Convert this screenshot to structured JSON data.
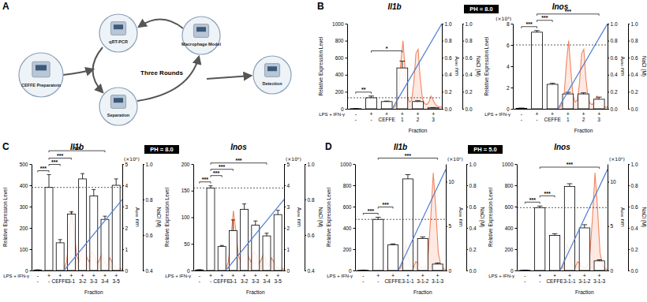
{
  "panels": [
    {
      "label": "A"
    },
    {
      "label": "B",
      "ph_label": "PH = 8.0"
    },
    {
      "label": "C",
      "ph_label": "PH = 8.0"
    },
    {
      "label": "D",
      "ph_label": "PH = 5.0"
    }
  ],
  "diagram": {
    "center_label": "Three Rounds",
    "nodes": [
      {
        "label": "CEFFE Preparatoin"
      },
      {
        "label": "qRT-PCR"
      },
      {
        "label": "Macrophage Model"
      },
      {
        "label": "Separation"
      },
      {
        "label": "Detection"
      }
    ]
  },
  "chart_data": [
    {
      "type": "bar",
      "title": "Il1b",
      "y_label": "Relative Expression Level",
      "y2_label": "A₂₈₀ nm",
      "y3_label": "NaCl (M)",
      "row_label": "LPS + IFN-γ",
      "row_values": [
        "-",
        "+",
        "+",
        "+",
        "+",
        "+"
      ],
      "categories": [
        "-",
        "-",
        "CEFFE",
        "1",
        "2",
        "3"
      ],
      "x_label": "Fraction",
      "values": [
        2,
        130,
        85,
        480,
        85,
        12
      ],
      "errors": [
        1,
        20,
        6,
        80,
        10,
        3
      ],
      "color": "#ffffff",
      "reference_line": 130,
      "ylim": [
        0,
        1000
      ],
      "yticks": [
        0,
        200,
        400,
        600,
        800,
        1000
      ],
      "y2lim": [
        0,
        1
      ],
      "y2ticks": [
        {
          "value": 0,
          "label": "0.0"
        },
        0.2,
        0.4,
        0.6,
        0.8,
        {
          "value": 1,
          "label": "1.0"
        }
      ],
      "y3lim": [
        0,
        1
      ],
      "y3ticks": [
        {
          "value": 0,
          "label": "0.0"
        },
        0.2,
        0.4,
        0.6,
        0.8,
        {
          "value": 1,
          "label": "1.0"
        }
      ],
      "chromatogram": {
        "color": "#f4845f",
        "axis": "y2",
        "values": [
          0,
          0.02,
          0.05,
          0.2,
          0.55,
          0.8,
          0.45,
          0.15,
          0.08,
          0.1,
          0.3,
          0.65,
          0.7,
          0.35,
          0.12,
          0.06,
          0.05,
          0.08,
          0.15,
          0.1,
          0.05,
          0.03,
          0.02,
          0.02
        ]
      },
      "gradient": {
        "color": "#4f7fd6",
        "axis": "y3",
        "values": [
          0,
          1
        ]
      },
      "annotations": [
        {
          "from": 0,
          "to": 1,
          "label": "**"
        },
        {
          "from": 1,
          "to": 3,
          "label": "*"
        }
      ]
    },
    {
      "type": "bar",
      "title": "Inos",
      "y_label": "Relative Expression Level",
      "y_unit_label": "(×10³)",
      "y2_label": "A₂₈₀ nm",
      "y3_label": "NaCl (M)",
      "row_label": "LPS + IFN-γ",
      "row_values": [
        "-",
        "+",
        "+",
        "+",
        "+",
        "+"
      ],
      "categories": [
        "-",
        "-",
        "CEFFE",
        "1",
        "2",
        "3"
      ],
      "x_label": "Fraction",
      "values": [
        0.05,
        7.2,
        2.3,
        1.4,
        1.4,
        0.9
      ],
      "errors": [
        0.02,
        0.15,
        0.1,
        0.15,
        0.1,
        0.2
      ],
      "color": "#ffffff",
      "reference_line": 6,
      "ylim": [
        0,
        8
      ],
      "yticks": [
        0,
        2,
        4,
        6,
        8
      ],
      "y2lim": [
        0,
        1
      ],
      "y2ticks": [
        {
          "value": 0,
          "label": "0.0"
        },
        0.2,
        0.4,
        0.6,
        0.8,
        {
          "value": 1,
          "label": "1.0"
        }
      ],
      "y3lim": [
        0,
        1
      ],
      "y3ticks": [
        {
          "value": 0,
          "label": "0.0"
        },
        0.2,
        0.4,
        0.6,
        0.8,
        {
          "value": 1,
          "label": "1.0"
        }
      ],
      "chromatogram": {
        "color": "#f4845f",
        "axis": "y2",
        "values": [
          0,
          0.02,
          0.05,
          0.2,
          0.55,
          0.8,
          0.45,
          0.15,
          0.08,
          0.1,
          0.3,
          0.65,
          0.7,
          0.35,
          0.12,
          0.06,
          0.05,
          0.08,
          0.15,
          0.1,
          0.05,
          0.03,
          0.02,
          0.02
        ]
      },
      "gradient": {
        "color": "#4f7fd6",
        "axis": "y3",
        "values": [
          0,
          1
        ]
      },
      "annotations": [
        {
          "from": 0,
          "to": 1,
          "label": "***"
        },
        {
          "from": 1,
          "to": 2,
          "label": "***"
        },
        {
          "from": 1,
          "to": 5,
          "label": "***"
        }
      ]
    },
    {
      "type": "bar",
      "title": "Il1b",
      "y_label": "Relative Expression Level",
      "y2_label": "A₂₈₀ nm",
      "y2_unit_label": "(×10⁶)",
      "y3_label": "NaCl (M)",
      "row_label": "LPS + IFN-γ",
      "row_values": [
        "-",
        "+",
        "+",
        "+",
        "+",
        "+",
        "+",
        "+"
      ],
      "categories": [
        "-",
        "-",
        "CEFFE",
        "3-1",
        "3-2",
        "3-3",
        "3-4",
        "3-5"
      ],
      "x_label": "Fraction",
      "values": [
        2,
        390,
        130,
        265,
        430,
        350,
        240,
        400
      ],
      "errors": [
        1,
        60,
        15,
        10,
        25,
        30,
        15,
        30
      ],
      "color": "#ffffff",
      "reference_line": 390,
      "ylim": [
        0,
        500
      ],
      "yticks": [
        0,
        100,
        200,
        300,
        400,
        500
      ],
      "y2lim": [
        0,
        5
      ],
      "y2ticks": [
        0,
        1,
        2,
        3,
        4,
        5
      ],
      "y3lim": [
        0.4,
        1
      ],
      "y3ticks": [
        0.4,
        0.6,
        0.8,
        {
          "value": 1,
          "label": "1.0"
        }
      ],
      "chromatogram": {
        "color": "#f4845f",
        "axis": "y2",
        "values": [
          0.1,
          0.4,
          1.5,
          2.8,
          1.8,
          0.7,
          0.4,
          0.9,
          1.2,
          0.6,
          0.4,
          0.9,
          0.7,
          0.3,
          0.5,
          0.8,
          0.4,
          0.2,
          0.6,
          0.4,
          0.2,
          0.1,
          0.1,
          0.05
        ]
      },
      "gradient": {
        "color": "#4f7fd6",
        "axis": "y3",
        "values": [
          0.4,
          0.8
        ]
      },
      "annotations": [
        {
          "from": 0,
          "to": 1,
          "label": "***"
        },
        {
          "from": 1,
          "to": 2,
          "label": "***"
        },
        {
          "from": 1,
          "to": 3,
          "label": "***"
        },
        {
          "from": 1,
          "to": 6,
          "label": "***"
        }
      ]
    },
    {
      "type": "bar",
      "title": "Inos",
      "y_label": "Relative Expression Level",
      "y2_label": "A₂₈₀ nm",
      "y2_unit_label": "(×10⁶)",
      "y3_label": "NaCl (M)",
      "row_label": "LPS + IFN-γ",
      "row_values": [
        "-",
        "+",
        "+",
        "+",
        "+",
        "+",
        "+",
        "+"
      ],
      "categories": [
        "-",
        "-",
        "CEFFE",
        "3-1",
        "3-2",
        "3-3",
        "3-4",
        "3-5"
      ],
      "x_label": "Fraction",
      "values": [
        1,
        155,
        45,
        75,
        115,
        85,
        65,
        105
      ],
      "errors": [
        0.5,
        4,
        2,
        20,
        10,
        8,
        5,
        8
      ],
      "color": "#ffffff",
      "reference_line": 155,
      "ylim": [
        0,
        200
      ],
      "yticks": [
        0,
        50,
        100,
        150,
        200
      ],
      "y2lim": [
        0,
        5
      ],
      "y2ticks": [
        0,
        1,
        2,
        3,
        4,
        5
      ],
      "y3lim": [
        0.4,
        1
      ],
      "y3ticks": [
        0.4,
        0.6,
        0.8,
        {
          "value": 1,
          "label": "1.0"
        }
      ],
      "chromatogram": {
        "color": "#f4845f",
        "axis": "y2",
        "values": [
          0.1,
          0.4,
          1.5,
          2.8,
          1.8,
          0.7,
          0.4,
          0.9,
          1.2,
          0.6,
          0.4,
          0.9,
          0.7,
          0.3,
          0.5,
          0.8,
          0.4,
          0.2,
          0.6,
          0.4,
          0.2,
          0.1,
          0.1,
          0.05
        ]
      },
      "gradient": {
        "color": "#4f7fd6",
        "axis": "y3",
        "values": [
          0.4,
          0.8
        ]
      },
      "annotations": [
        {
          "from": 0,
          "to": 1,
          "label": "***"
        },
        {
          "from": 1,
          "to": 2,
          "label": "***"
        },
        {
          "from": 1,
          "to": 3,
          "label": "***"
        },
        {
          "from": 1,
          "to": 6,
          "label": "***"
        }
      ]
    },
    {
      "type": "bar",
      "title": "Il1b",
      "y_label": "Relative Expression Level",
      "y2_label": "A₂₈₀ nm",
      "y2_unit_label": "(×10⁶)",
      "y3_label": "NaCl (M)",
      "row_label": "LPS + IFN-γ",
      "row_values": [
        "-",
        "+",
        "+",
        "+",
        "+",
        "+"
      ],
      "categories": [
        "-",
        "-",
        "CEFFE",
        "3-1-1",
        "3-1-2",
        "3-1-3"
      ],
      "x_label": "Fraction",
      "values": [
        2,
        480,
        240,
        860,
        300,
        60
      ],
      "errors": [
        1,
        20,
        10,
        40,
        15,
        10
      ],
      "color": "#ffffff",
      "reference_line": 480,
      "ylim": [
        0,
        1000
      ],
      "yticks": [
        0,
        200,
        400,
        600,
        800,
        1000
      ],
      "y2lim": [
        0,
        12
      ],
      "y2ticks": [
        0,
        5,
        10
      ],
      "y3lim": [
        0,
        1
      ],
      "y3ticks": [
        {
          "value": 0,
          "label": "0.0"
        },
        0.2,
        0.4,
        0.6,
        0.8,
        {
          "value": 1,
          "label": "1.0"
        }
      ],
      "chromatogram": {
        "color": "#f4845f",
        "axis": "y2",
        "values": [
          0.1,
          0.3,
          1.5,
          3,
          1.5,
          0.5,
          0.3,
          1,
          0.8,
          0.4,
          0.3,
          0.5,
          2,
          6,
          11,
          7,
          2,
          0.6,
          0.2,
          0.1
        ]
      },
      "gradient": {
        "color": "#4f7fd6",
        "axis": "y3",
        "values": [
          0,
          0.95
        ]
      },
      "annotations": [
        {
          "from": 0,
          "to": 1,
          "label": "***"
        },
        {
          "from": 1,
          "to": 2,
          "label": "***"
        },
        {
          "from": 1,
          "to": 5,
          "label": "***"
        }
      ]
    },
    {
      "type": "bar",
      "title": "Inos",
      "y_label": "Relative Expression Level",
      "y2_label": "A₂₈₀ nm",
      "y2_unit_label": "(×10⁶)",
      "y3_label": "NaCl (M)",
      "row_label": "LPS + IFN-γ",
      "row_values": [
        "-",
        "+",
        "+",
        "+",
        "+",
        "+"
      ],
      "categories": [
        "-",
        "-",
        "CEFFE",
        "3-1-1",
        "3-1-2",
        "3-1-3"
      ],
      "x_label": "Fraction",
      "values": [
        2,
        590,
        330,
        790,
        400,
        90
      ],
      "errors": [
        1,
        15,
        15,
        25,
        30,
        10
      ],
      "color": "#ffffff",
      "reference_line": 590,
      "ylim": [
        0,
        1000
      ],
      "yticks": [
        0,
        200,
        400,
        600,
        800,
        1000
      ],
      "y2lim": [
        0,
        12
      ],
      "y2ticks": [
        0,
        5,
        10
      ],
      "y3lim": [
        0,
        1
      ],
      "y3ticks": [
        {
          "value": 0,
          "label": "0.0"
        },
        0.2,
        0.4,
        0.6,
        0.8,
        {
          "value": 1,
          "label": "1.0"
        }
      ],
      "chromatogram": {
        "color": "#f4845f",
        "axis": "y2",
        "values": [
          0.1,
          0.3,
          1.5,
          3,
          1.5,
          0.5,
          0.3,
          1,
          0.8,
          0.4,
          0.3,
          0.5,
          2,
          6,
          11,
          7,
          2,
          0.6,
          0.2,
          0.1
        ]
      },
      "gradient": {
        "color": "#4f7fd6",
        "axis": "y3",
        "values": [
          0,
          0.95
        ]
      },
      "annotations": [
        {
          "from": 0,
          "to": 1,
          "label": "***"
        },
        {
          "from": 1,
          "to": 2,
          "label": "***"
        },
        {
          "from": 1,
          "to": 5,
          "label": "***"
        }
      ]
    }
  ]
}
